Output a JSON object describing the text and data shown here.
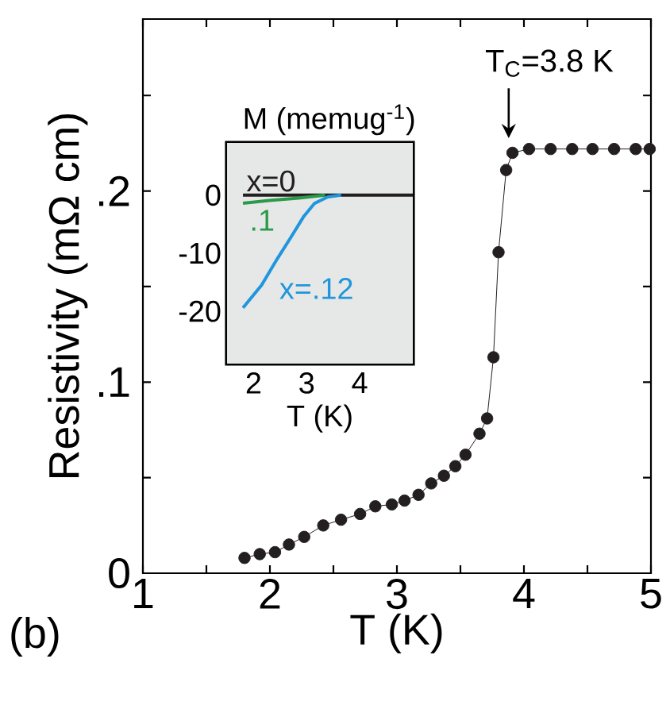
{
  "chart_data": [
    {
      "type": "line",
      "xlabel": "T (K)",
      "ylabel": "Resistivity (mΩ cm)",
      "marker": "circle",
      "line_style": "solid",
      "xlim": [
        1,
        5
      ],
      "ylim": [
        0,
        0.29
      ],
      "xticks": [
        1,
        {
          "value": 1.5,
          "label": null
        },
        2,
        {
          "value": 2.5,
          "label": null
        },
        3,
        {
          "value": 3.5,
          "label": null
        },
        4,
        {
          "value": 4.5,
          "label": null
        },
        5
      ],
      "yticks": [
        0,
        {
          "value": 0.05,
          "label": null
        },
        {
          "value": 0.1,
          "label": ".1"
        },
        {
          "value": 0.15,
          "label": null
        },
        {
          "value": 0.2,
          "label": ".2"
        },
        {
          "value": 0.25,
          "label": null
        }
      ],
      "x": [
        1.8,
        1.92,
        2.04,
        2.15,
        2.27,
        2.42,
        2.56,
        2.71,
        2.83,
        2.96,
        3.06,
        3.17,
        3.27,
        3.37,
        3.46,
        3.54,
        3.65,
        3.71,
        3.76,
        3.8,
        3.86,
        3.91,
        4.04,
        4.21,
        4.38,
        4.54,
        4.71,
        4.88,
        4.99
      ],
      "series": [
        {
          "color": "#231f20",
          "values": [
            0.008,
            0.01,
            0.011,
            0.015,
            0.019,
            0.025,
            0.028,
            0.031,
            0.035,
            0.036,
            0.038,
            0.041,
            0.047,
            0.051,
            0.056,
            0.062,
            0.073,
            0.081,
            0.113,
            0.168,
            0.211,
            0.22,
            0.222,
            0.222,
            0.222,
            0.222,
            0.222,
            0.222,
            0.222
          ]
        }
      ],
      "annotations": [
        "T$_{C}$=3.8 K",
        "(b)"
      ]
    },
    {
      "type": "line",
      "xlabel": "T (K)",
      "ylabel": "M (memug$^{-1}$)",
      "line_style": "solid",
      "xlim": [
        1.5,
        5
      ],
      "ylim": [
        -29,
        9
      ],
      "xticks": [
        2,
        3,
        4
      ],
      "yticks": [
        -20,
        -10,
        0
      ],
      "series": [
        {
          "name": "x=0",
          "color": "#231f20",
          "x": [
            1.8,
            5
          ],
          "values": [
            0,
            0
          ]
        },
        {
          "name": ".1",
          "color": "#2a9a48",
          "x": [
            1.8,
            2.3,
            2.85,
            3.35
          ],
          "values": [
            -1.4,
            -0.9,
            -0.5,
            0
          ]
        },
        {
          "name": "x=.12",
          "color": "#2196dc",
          "x": [
            1.8,
            2.15,
            2.45,
            2.7,
            2.95,
            3.15,
            3.4,
            3.65
          ],
          "values": [
            -19.4,
            -15.5,
            -10.9,
            -7.3,
            -3.6,
            -1.4,
            -0.3,
            0
          ]
        }
      ]
    }
  ]
}
